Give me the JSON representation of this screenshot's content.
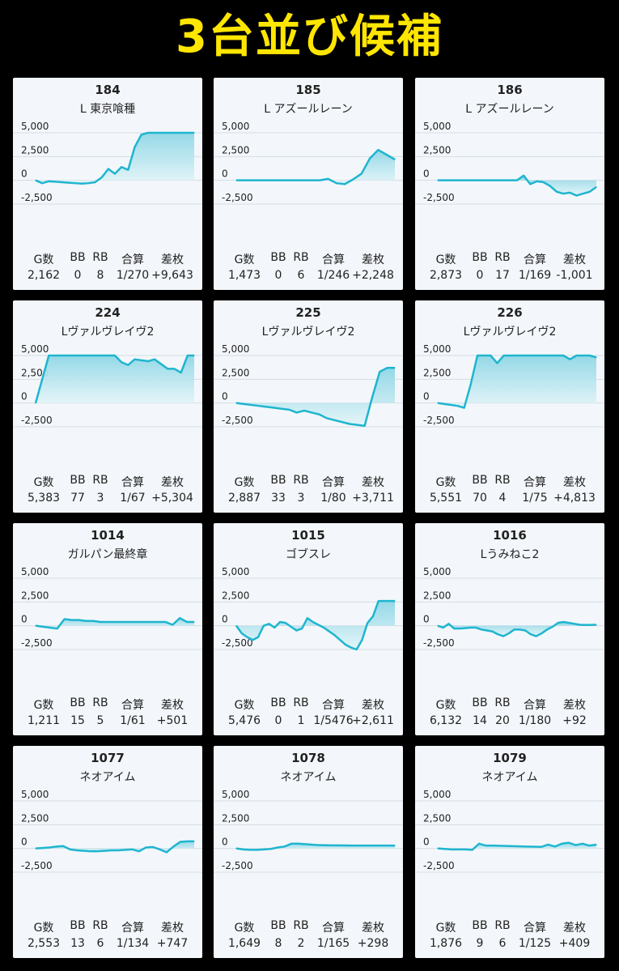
{
  "banner": {
    "title": "3台並び候補"
  },
  "stat_labels": [
    "G数",
    "BB",
    "RB",
    "合算",
    "差枚"
  ],
  "colors": {
    "line": "#1FB5CF",
    "fill_top": "#8FD7E6",
    "fill_bottom": "#E2F4F8",
    "grid": "#D4DCE3",
    "card_bg": "#F3F7FB",
    "banner": "#FFE600"
  },
  "chart_data": [
    {
      "type": "area",
      "title": "184",
      "subtitle": "L 東京喰種",
      "y_ticks": [
        "5,000",
        "2,500",
        "0",
        "-2,500"
      ],
      "ylim": [
        -2500,
        5000
      ],
      "x": [
        0,
        1,
        2,
        3,
        4,
        5,
        6,
        7,
        8,
        9,
        10,
        11,
        12,
        13,
        14,
        15,
        16,
        17,
        18,
        19,
        20,
        21,
        22,
        23,
        24
      ],
      "values": [
        0,
        -300,
        -100,
        -150,
        -200,
        -250,
        -300,
        -350,
        -300,
        -200,
        300,
        1200,
        700,
        1400,
        1100,
        3500,
        4800,
        5000,
        5000,
        5000,
        5000,
        5000,
        5000,
        5000,
        5000
      ],
      "stats": {
        "games": "2,162",
        "bb": "0",
        "rb": "8",
        "combined": "1/270",
        "diff": "+9,643"
      }
    },
    {
      "type": "area",
      "title": "185",
      "subtitle": "L アズールレーン",
      "y_ticks": [
        "5,000",
        "2,500",
        "0",
        "-2,500"
      ],
      "ylim": [
        -2500,
        5000
      ],
      "x": [
        0,
        1,
        2,
        3,
        4,
        5,
        6,
        7,
        8,
        9,
        10,
        11,
        12,
        13,
        14,
        15,
        16,
        17,
        18,
        19
      ],
      "values": [
        0,
        0,
        0,
        0,
        0,
        0,
        0,
        0,
        0,
        0,
        0,
        150,
        -300,
        -400,
        100,
        700,
        2300,
        3200,
        2700,
        2200
      ],
      "stats": {
        "games": "1,473",
        "bb": "0",
        "rb": "6",
        "combined": "1/246",
        "diff": "+2,248"
      }
    },
    {
      "type": "area",
      "title": "186",
      "subtitle": "L アズールレーン",
      "y_ticks": [
        "5,000",
        "2,500",
        "0",
        "-2,500"
      ],
      "ylim": [
        -2500,
        5000
      ],
      "x": [
        0,
        1,
        2,
        3,
        4,
        5,
        6,
        7,
        8,
        9,
        10,
        11,
        12,
        13,
        14,
        15,
        16,
        17,
        18,
        19,
        20,
        21,
        22,
        23,
        24
      ],
      "values": [
        0,
        0,
        0,
        0,
        0,
        0,
        0,
        0,
        0,
        0,
        0,
        0,
        0,
        500,
        -400,
        -100,
        -200,
        -600,
        -1200,
        -1400,
        -1300,
        -1600,
        -1400,
        -1200,
        -700
      ],
      "stats": {
        "games": "2,873",
        "bb": "0",
        "rb": "17",
        "combined": "1/169",
        "diff": "-1,001"
      }
    },
    {
      "type": "area",
      "title": "224",
      "subtitle": "Lヴァルヴレイヴ2",
      "y_ticks": [
        "5,000",
        "2,500",
        "0",
        "-2,500"
      ],
      "ylim": [
        -2500,
        5000
      ],
      "x": [
        0,
        1,
        2,
        3,
        4,
        5,
        6,
        7,
        8,
        9,
        10,
        11,
        12,
        13,
        14,
        15,
        16,
        17,
        18,
        19,
        20,
        21,
        22,
        23,
        24
      ],
      "values": [
        0,
        2500,
        5000,
        5000,
        5000,
        5000,
        5000,
        5000,
        5000,
        5000,
        5000,
        5000,
        5000,
        4300,
        4000,
        4600,
        4500,
        4400,
        4600,
        4100,
        3600,
        3600,
        3200,
        5000,
        5000
      ],
      "stats": {
        "games": "5,383",
        "bb": "77",
        "rb": "3",
        "combined": "1/67",
        "diff": "+5,304"
      }
    },
    {
      "type": "area",
      "title": "225",
      "subtitle": "Lヴァルヴレイヴ2",
      "y_ticks": [
        "5,000",
        "2,500",
        "0",
        "-2,500"
      ],
      "ylim": [
        -2500,
        5000
      ],
      "x": [
        0,
        1,
        2,
        3,
        4,
        5,
        6,
        7,
        8,
        9,
        10,
        11,
        12,
        13,
        14,
        15,
        16,
        17,
        18,
        19,
        20,
        21
      ],
      "values": [
        0,
        -100,
        -200,
        -300,
        -400,
        -500,
        -600,
        -700,
        -1000,
        -800,
        -1000,
        -1200,
        -1600,
        -1800,
        -2000,
        -2200,
        -2300,
        -2400,
        600,
        3300,
        3700,
        3700
      ],
      "stats": {
        "games": "2,887",
        "bb": "33",
        "rb": "3",
        "combined": "1/80",
        "diff": "+3,711"
      }
    },
    {
      "type": "area",
      "title": "226",
      "subtitle": "Lヴァルヴレイヴ2",
      "y_ticks": [
        "5,000",
        "2,500",
        "0",
        "-2,500"
      ],
      "ylim": [
        -2500,
        5000
      ],
      "x": [
        0,
        1,
        2,
        3,
        4,
        5,
        6,
        7,
        8,
        9,
        10,
        11,
        12,
        13,
        14,
        15,
        16,
        17,
        18,
        19,
        20,
        21,
        22,
        23,
        24
      ],
      "values": [
        0,
        -100,
        -200,
        -300,
        -500,
        2000,
        5000,
        5000,
        5000,
        4200,
        5000,
        5000,
        5000,
        5000,
        5000,
        5000,
        5000,
        5000,
        5000,
        5000,
        4600,
        5000,
        5000,
        5000,
        4800
      ],
      "stats": {
        "games": "5,551",
        "bb": "70",
        "rb": "4",
        "combined": "1/75",
        "diff": "+4,813"
      }
    },
    {
      "type": "area",
      "title": "1014",
      "subtitle": "ガルパン最終章",
      "y_ticks": [
        "5,000",
        "2,500",
        "0",
        "-2,500"
      ],
      "ylim": [
        -2500,
        5000
      ],
      "x": [
        0,
        1,
        2,
        3,
        4,
        5,
        6,
        7,
        8,
        9,
        10,
        11,
        12,
        13,
        14,
        15,
        16,
        17,
        18,
        19,
        20,
        21,
        22
      ],
      "values": [
        0,
        -100,
        -200,
        -300,
        700,
        600,
        600,
        500,
        500,
        400,
        400,
        400,
        400,
        400,
        400,
        400,
        400,
        400,
        400,
        100,
        800,
        400,
        400
      ],
      "stats": {
        "games": "1,211",
        "bb": "15",
        "rb": "5",
        "combined": "1/61",
        "diff": "+501"
      }
    },
    {
      "type": "area",
      "title": "1015",
      "subtitle": "ゴブスレ",
      "y_ticks": [
        "5,000",
        "2,500",
        "0",
        "-2,500"
      ],
      "ylim": [
        -2500,
        5000
      ],
      "x": [
        0,
        1,
        2,
        3,
        4,
        5,
        6,
        7,
        8,
        9,
        10,
        11,
        12,
        13,
        14,
        15,
        16,
        17,
        18,
        19,
        20,
        21,
        22,
        23,
        24,
        25,
        26,
        27,
        28,
        29
      ],
      "values": [
        0,
        -800,
        -1200,
        -1500,
        -1200,
        0,
        200,
        -200,
        400,
        300,
        -100,
        -500,
        -300,
        800,
        400,
        100,
        -200,
        -600,
        -1000,
        -1500,
        -2000,
        -2300,
        -2500,
        -1500,
        300,
        1000,
        2600,
        2600,
        2600,
        2600
      ],
      "stats": {
        "games": "5,476",
        "bb": "0",
        "rb": "1",
        "combined": "1/5476",
        "diff": "+2,611"
      }
    },
    {
      "type": "area",
      "title": "1016",
      "subtitle": "Lうみねこ2",
      "y_ticks": [
        "5,000",
        "2,500",
        "0",
        "-2,500"
      ],
      "ylim": [
        -2500,
        5000
      ],
      "x": [
        0,
        1,
        2,
        3,
        4,
        5,
        6,
        7,
        8,
        9,
        10,
        11,
        12,
        13,
        14,
        15,
        16,
        17,
        18,
        19,
        20,
        21,
        22,
        23,
        24,
        25,
        26,
        27,
        28,
        29
      ],
      "values": [
        0,
        -200,
        200,
        -300,
        -300,
        -250,
        -200,
        -200,
        -400,
        -500,
        -600,
        -900,
        -1100,
        -800,
        -400,
        -400,
        -500,
        -900,
        -1100,
        -800,
        -400,
        -100,
        300,
        400,
        300,
        200,
        100,
        80,
        90,
        100
      ],
      "stats": {
        "games": "6,132",
        "bb": "14",
        "rb": "20",
        "combined": "1/180",
        "diff": "+92"
      }
    },
    {
      "type": "area",
      "title": "1077",
      "subtitle": "ネオアイム",
      "y_ticks": [
        "5,000",
        "2,500",
        "0",
        "-2,500"
      ],
      "ylim": [
        -2500,
        5000
      ],
      "x": [
        0,
        1,
        2,
        3,
        4,
        5,
        6,
        7,
        8,
        9,
        10,
        11,
        12,
        13,
        14,
        15,
        16,
        17,
        18,
        19,
        20,
        21,
        22,
        23
      ],
      "values": [
        0,
        50,
        100,
        200,
        250,
        -100,
        -200,
        -250,
        -300,
        -300,
        -250,
        -200,
        -200,
        -150,
        -100,
        -300,
        100,
        150,
        -100,
        -400,
        200,
        700,
        750,
        750
      ],
      "stats": {
        "games": "2,553",
        "bb": "13",
        "rb": "6",
        "combined": "1/134",
        "diff": "+747"
      }
    },
    {
      "type": "area",
      "title": "1078",
      "subtitle": "ネオアイム",
      "y_ticks": [
        "5,000",
        "2,500",
        "0",
        "-2,500"
      ],
      "ylim": [
        -2500,
        5000
      ],
      "x": [
        0,
        1,
        2,
        3,
        4,
        5,
        6,
        7,
        8,
        9,
        10,
        11,
        12,
        13,
        14,
        15,
        16,
        17,
        18,
        19,
        20,
        21,
        22,
        23
      ],
      "values": [
        0,
        -100,
        -150,
        -150,
        -100,
        -50,
        100,
        200,
        500,
        500,
        450,
        400,
        350,
        330,
        320,
        320,
        310,
        300,
        300,
        300,
        300,
        300,
        300,
        300
      ],
      "stats": {
        "games": "1,649",
        "bb": "8",
        "rb": "2",
        "combined": "1/165",
        "diff": "+298"
      }
    },
    {
      "type": "area",
      "title": "1079",
      "subtitle": "ネオアイム",
      "y_ticks": [
        "5,000",
        "2,500",
        "0",
        "-2,500"
      ],
      "ylim": [
        -2500,
        5000
      ],
      "x": [
        0,
        1,
        2,
        3,
        4,
        5,
        6,
        7,
        8,
        9,
        10,
        11,
        12,
        13,
        14,
        15,
        16,
        17,
        18,
        19,
        20,
        21,
        22,
        23
      ],
      "values": [
        0,
        -50,
        -100,
        -100,
        -100,
        -150,
        500,
        300,
        300,
        280,
        260,
        240,
        220,
        200,
        180,
        160,
        400,
        200,
        500,
        600,
        350,
        500,
        300,
        400
      ],
      "stats": {
        "games": "1,876",
        "bb": "9",
        "rb": "6",
        "combined": "1/125",
        "diff": "+409"
      }
    }
  ]
}
